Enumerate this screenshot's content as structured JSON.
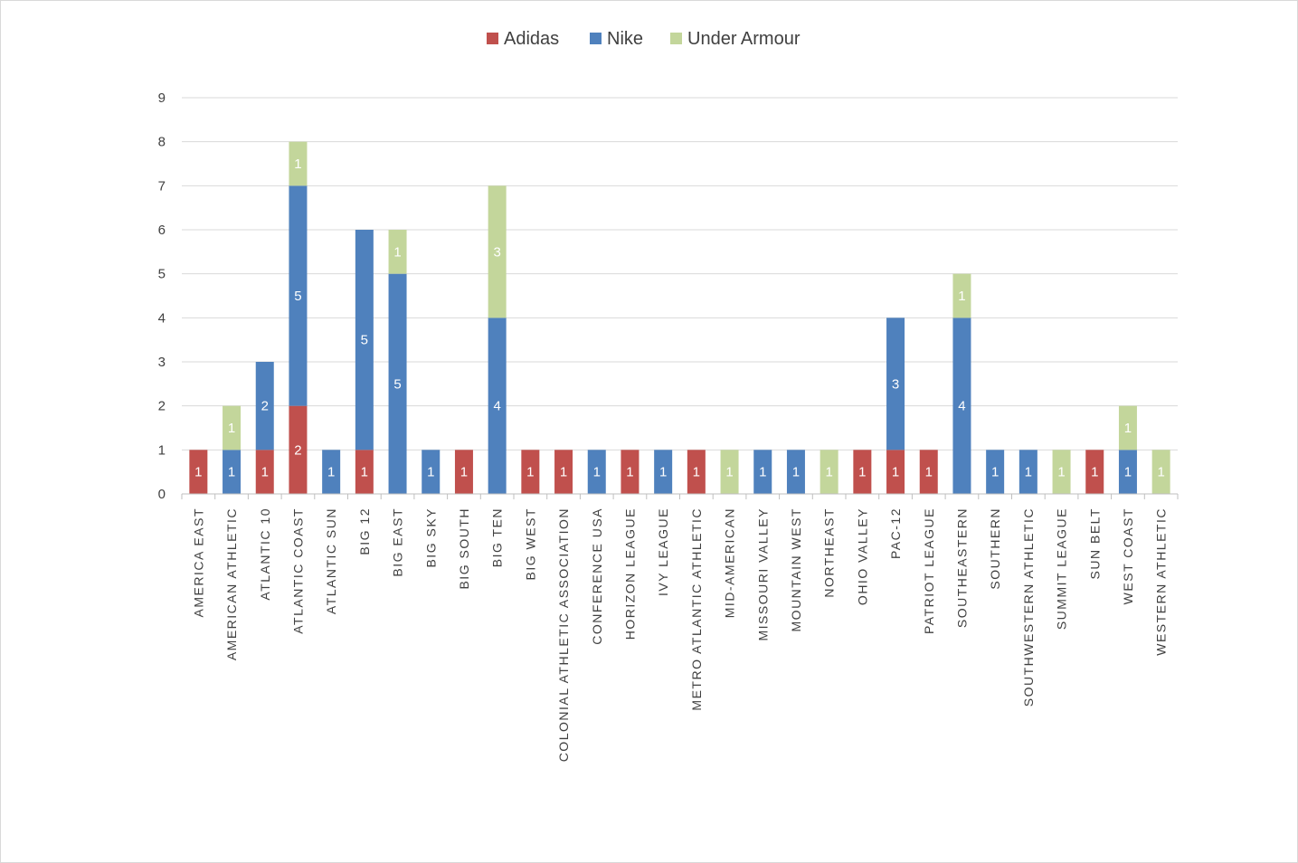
{
  "chart_data": {
    "type": "bar",
    "stacked": true,
    "categories": [
      "AMERICA EAST",
      "AMERICAN ATHLETIC",
      "ATLANTIC 10",
      "ATLANTIC COAST",
      "ATLANTIC SUN",
      "BIG 12",
      "BIG EAST",
      "BIG SKY",
      "BIG SOUTH",
      "BIG TEN",
      "BIG WEST",
      "COLONIAL ATHLETIC ASSOCIATION",
      "CONFERENCE USA",
      "HORIZON LEAGUE",
      "IVY LEAGUE",
      "METRO ATLANTIC ATHLETIC",
      "MID-AMERICAN",
      "MISSOURI VALLEY",
      "MOUNTAIN WEST",
      "NORTHEAST",
      "OHIO VALLEY",
      "PAC-12",
      "PATRIOT LEAGUE",
      "SOUTHEASTERN",
      "SOUTHERN",
      "SOUTHWESTERN ATHLETIC",
      "SUMMIT LEAGUE",
      "SUN BELT",
      "WEST COAST",
      "WESTERN ATHLETIC"
    ],
    "series": [
      {
        "name": "Adidas",
        "color": "#c0504d",
        "values": [
          1,
          0,
          1,
          2,
          0,
          1,
          0,
          0,
          1,
          0,
          1,
          1,
          0,
          1,
          0,
          1,
          0,
          0,
          0,
          0,
          1,
          1,
          1,
          0,
          0,
          0,
          0,
          1,
          0,
          0
        ]
      },
      {
        "name": "Nike",
        "color": "#4f81bd",
        "values": [
          0,
          1,
          2,
          5,
          1,
          5,
          5,
          1,
          0,
          4,
          0,
          0,
          1,
          0,
          1,
          0,
          0,
          1,
          1,
          0,
          0,
          3,
          0,
          4,
          1,
          1,
          0,
          0,
          1,
          0
        ]
      },
      {
        "name": "Under Armour",
        "color": "#c3d69b",
        "values": [
          0,
          1,
          0,
          1,
          0,
          0,
          1,
          0,
          0,
          3,
          0,
          0,
          0,
          0,
          0,
          0,
          1,
          0,
          0,
          1,
          0,
          0,
          0,
          1,
          0,
          0,
          1,
          0,
          1,
          1
        ]
      }
    ],
    "ylim": [
      0,
      9
    ],
    "yticks": [
      "0",
      "1",
      "2",
      "3",
      "4",
      "5",
      "6",
      "7",
      "8",
      "9"
    ],
    "grid": true,
    "legend_position": "top",
    "gridline_color": "#d9d9d9",
    "axis_color": "#bfbfbf"
  }
}
